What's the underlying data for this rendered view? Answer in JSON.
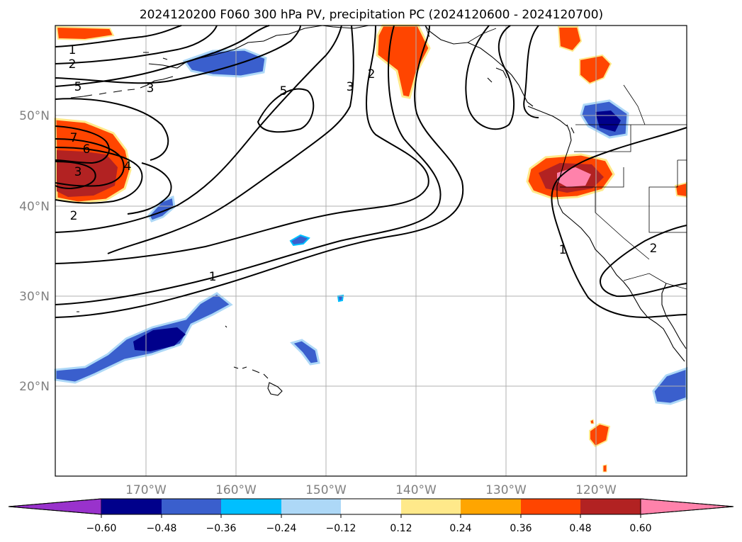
{
  "title": "2024120200 F060 300 hPa PV, precipitation PC (2024120600 - 2024120700)",
  "map": {
    "lon_min": -180,
    "lon_max": -110,
    "lat_min": 10,
    "lat_max": 60,
    "lon_gridlines": [
      -170,
      -160,
      -150,
      -140,
      -130,
      -120
    ],
    "lat_gridlines": [
      20,
      30,
      40,
      50
    ],
    "lon_labels": [
      "170°W",
      "160°W",
      "150°W",
      "140°W",
      "130°W",
      "120°W"
    ],
    "lat_labels": [
      "20°N",
      "30°N",
      "40°N",
      "50°N"
    ],
    "grid_color": "#b0b0b0",
    "label_color": "#808080"
  },
  "colorbar": {
    "tick_labels": [
      "−0.60",
      "−0.48",
      "−0.36",
      "−0.24",
      "−0.12",
      "0.12",
      "0.24",
      "0.36",
      "0.48",
      "0.60"
    ],
    "colors": [
      "#9932cc",
      "#00008b",
      "#3a5fcd",
      "#00bfff",
      "#add8f7",
      "#ffffff",
      "#ffe98a",
      "#ffa500",
      "#ff4500",
      "#b22222",
      "#ff82ab"
    ],
    "extend": "both"
  },
  "contours": {
    "variable": "300 hPa PV",
    "labels": [
      "1",
      "2",
      "5",
      "3",
      "5",
      "3",
      "2",
      "7",
      "6",
      "3",
      "4",
      "2",
      "1",
      "1",
      "2"
    ]
  },
  "precip_features": [
    {
      "region": "Gulf of Alaska coast",
      "category": "0.36 to 0.48"
    },
    {
      "region": "Northern California / Oregon",
      "category": "> 0.60"
    },
    {
      "region": "Western Pacific near 45N",
      "category": "0.48 to 0.60"
    },
    {
      "region": "Southern Bering Sea",
      "category": "-0.48 to -0.36"
    },
    {
      "region": "Washington / British Columbia",
      "category": "< -0.60"
    },
    {
      "region": "Subtropical Pacific band",
      "category": "< -0.60"
    },
    {
      "region": "Off Baja California",
      "category": "-0.48 to -0.36"
    }
  ]
}
